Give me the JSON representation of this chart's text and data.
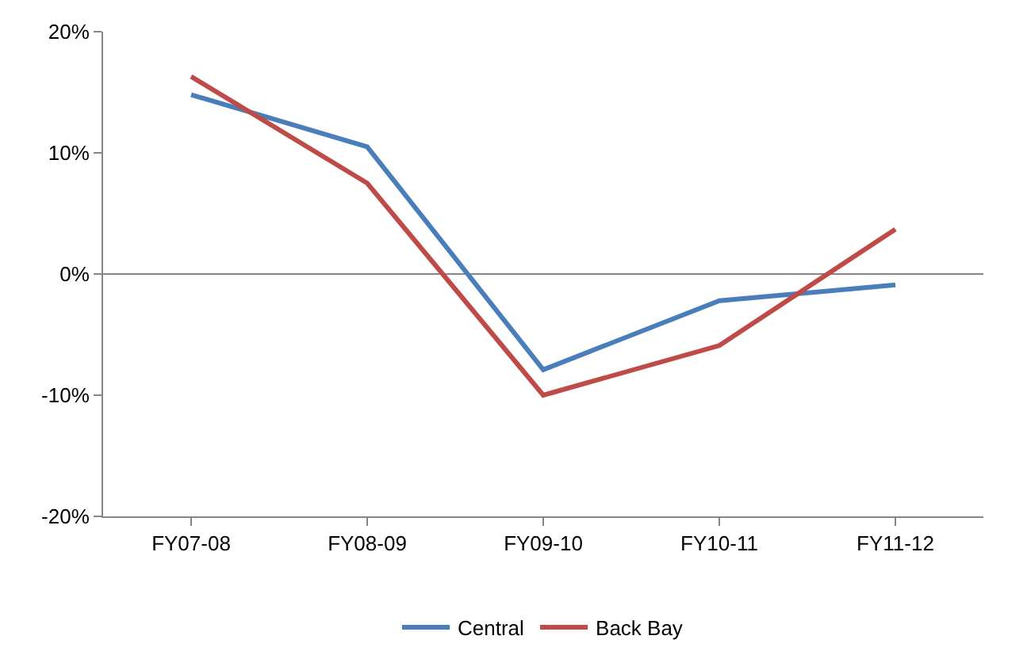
{
  "chart_data": {
    "type": "line",
    "categories": [
      "FY07-08",
      "FY08-09",
      "FY09-10",
      "FY10-11",
      "FY11-12"
    ],
    "series": [
      {
        "name": "Central",
        "color": "#4a7ebb",
        "values": [
          14.8,
          10.5,
          -7.9,
          -2.2,
          -0.9
        ]
      },
      {
        "name": "Back Bay",
        "color": "#be4b48",
        "values": [
          16.3,
          7.5,
          -10.0,
          -5.9,
          3.7
        ]
      }
    ],
    "ylim": [
      -20,
      20
    ],
    "yticks": [
      {
        "value": -20,
        "label": "-20%"
      },
      {
        "value": -10,
        "label": "-10%"
      },
      {
        "value": 0,
        "label": "0%"
      },
      {
        "value": 10,
        "label": "10%"
      },
      {
        "value": 20,
        "label": "20%"
      }
    ],
    "ref_lines": [
      {
        "axis": "y",
        "value": 0,
        "color": "#868686"
      }
    ],
    "grid": false,
    "legend": "bottom",
    "marker": "none",
    "line_style": "solid"
  }
}
